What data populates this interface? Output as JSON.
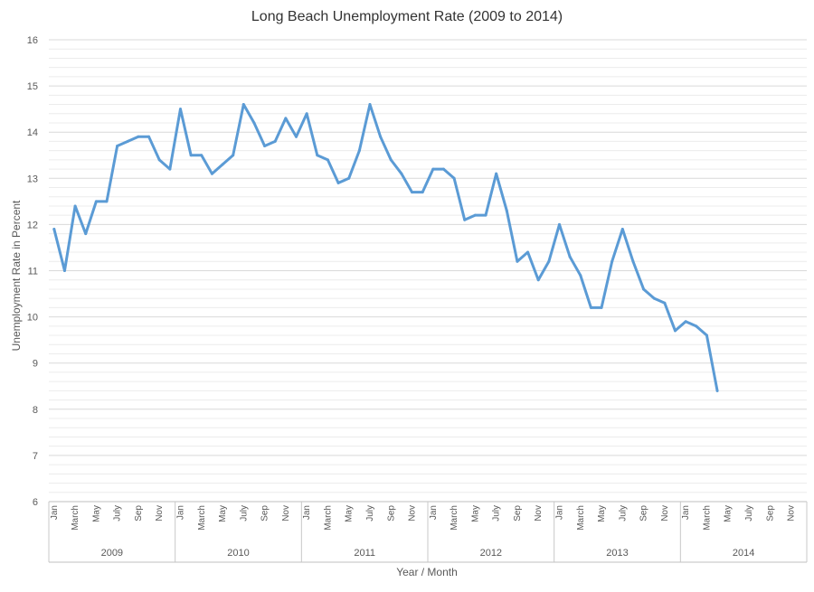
{
  "chart_data": {
    "type": "line",
    "title": "Long Beach Unemployment Rate (2009 to 2014)",
    "xlabel": "Year / Month",
    "ylabel": "Unemployment Rate in Percent",
    "ylim": [
      6,
      16
    ],
    "yticks": [
      6,
      7,
      8,
      9,
      10,
      11,
      12,
      13,
      14,
      15,
      16
    ],
    "grid": true,
    "month_tick_labels": [
      "Jan",
      "March",
      "May",
      "July",
      "Sep",
      "Nov"
    ],
    "years": [
      "2009",
      "2010",
      "2011",
      "2012",
      "2013",
      "2014"
    ],
    "months_per_year": 12,
    "series": [
      {
        "color": "#5b9bd5",
        "values": [
          11.9,
          11.0,
          12.4,
          11.8,
          12.5,
          12.5,
          13.7,
          13.8,
          13.9,
          13.9,
          13.4,
          13.2,
          14.5,
          13.5,
          13.5,
          13.1,
          13.3,
          13.5,
          14.6,
          14.2,
          13.7,
          13.8,
          14.3,
          13.9,
          14.4,
          13.5,
          13.4,
          12.9,
          13.0,
          13.6,
          14.6,
          13.9,
          13.4,
          13.1,
          12.7,
          12.7,
          13.2,
          13.2,
          13.0,
          12.1,
          12.2,
          12.2,
          13.1,
          12.3,
          11.2,
          11.4,
          10.8,
          11.2,
          12.0,
          11.3,
          10.9,
          10.2,
          10.2,
          11.2,
          11.9,
          11.2,
          10.6,
          10.4,
          10.3,
          9.7,
          9.9,
          9.8,
          9.6,
          8.4
        ]
      }
    ]
  }
}
